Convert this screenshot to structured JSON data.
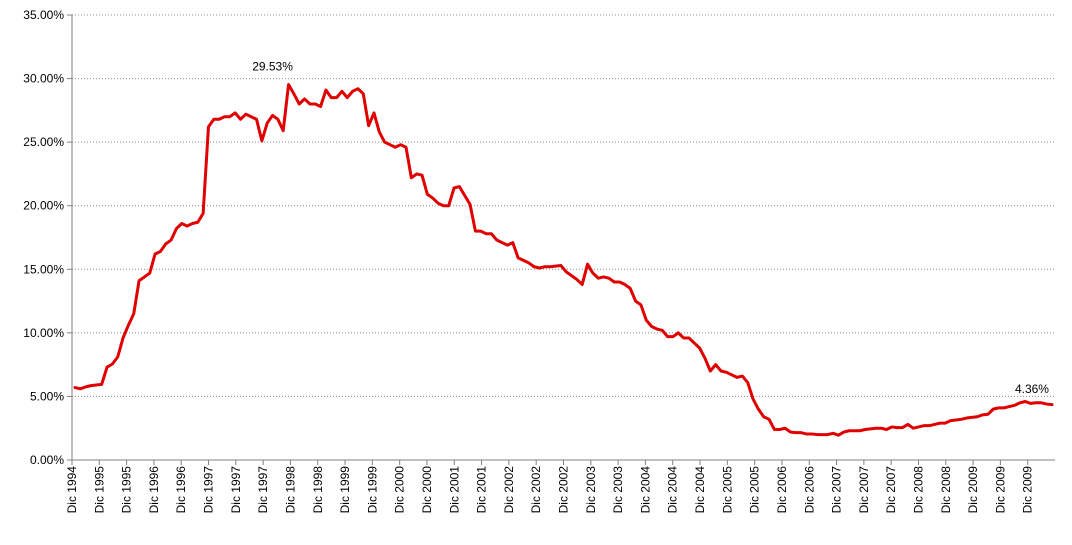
{
  "chart_data": {
    "type": "line",
    "title": "",
    "xlabel": "",
    "ylabel": "",
    "ylim": [
      0,
      35
    ],
    "y_ticks": [
      0,
      5,
      10,
      15,
      20,
      25,
      30,
      35
    ],
    "y_tick_labels": [
      "0.00%",
      "5.00%",
      "10.00%",
      "15.00%",
      "20.00%",
      "25.00%",
      "30.00%",
      "35.00%"
    ],
    "y_grid": "dotted",
    "x_tick_labels": [
      "Dic 1994",
      "Dic 1995",
      "Dic 1995",
      "Dic 1996",
      "Dic 1996",
      "Dic 1997",
      "Dic 1997",
      "Dic 1997",
      "Dic 1998",
      "Dic 1998",
      "Dic 1999",
      "Dic 1999",
      "Dic 2000",
      "Dic 2000",
      "Dic 2001",
      "Dic 2001",
      "Dic 2002",
      "Dic 2002",
      "Dic 2002",
      "Dic 2003",
      "Dic 2003",
      "Dic 2004",
      "Dic 2004",
      "Dic 2004",
      "Dic 2005",
      "Dic 2005",
      "Dic 2006",
      "Dic 2006",
      "Dic 2007",
      "Dic 2007",
      "Dic 2007",
      "Dic 2008",
      "Dic 2008",
      "Dic 2009",
      "Dic 2009",
      "Dic 2009"
    ],
    "series": [
      {
        "color": "#e00000",
        "values": [
          5.7,
          5.6,
          5.75,
          5.85,
          5.9,
          5.95,
          7.3,
          7.55,
          8.1,
          9.6,
          10.6,
          11.5,
          14.1,
          14.4,
          14.7,
          16.2,
          16.4,
          17.0,
          17.3,
          18.2,
          18.6,
          18.4,
          18.6,
          18.7,
          19.4,
          26.2,
          26.8,
          26.8,
          27.0,
          27.0,
          27.3,
          26.8,
          27.2,
          27.0,
          26.8,
          25.1,
          26.5,
          27.1,
          26.8,
          25.9,
          29.53,
          28.8,
          28.0,
          28.4,
          28.0,
          28.0,
          27.8,
          29.1,
          28.5,
          28.5,
          29.0,
          28.5,
          29.0,
          29.2,
          28.8,
          26.3,
          27.3,
          25.8,
          25.0,
          24.8,
          24.6,
          24.8,
          24.6,
          22.2,
          22.5,
          22.4,
          20.9,
          20.6,
          20.2,
          20.0,
          20.0,
          21.4,
          21.5,
          20.8,
          20.1,
          18.0,
          18.0,
          17.8,
          17.8,
          17.3,
          17.1,
          16.9,
          17.1,
          15.9,
          15.7,
          15.5,
          15.2,
          15.1,
          15.2,
          15.2,
          15.25,
          15.3,
          14.8,
          14.5,
          14.2,
          13.8,
          15.4,
          14.7,
          14.3,
          14.4,
          14.3,
          14.0,
          14.0,
          13.8,
          13.5,
          12.5,
          12.2,
          11.0,
          10.5,
          10.3,
          10.2,
          9.7,
          9.7,
          10.0,
          9.6,
          9.6,
          9.2,
          8.8,
          8.0,
          7.0,
          7.5,
          7.0,
          6.9,
          6.7,
          6.5,
          6.6,
          6.1,
          4.8,
          4.0,
          3.4,
          3.2,
          2.4,
          2.4,
          2.5,
          2.2,
          2.15,
          2.15,
          2.05,
          2.05,
          2.0,
          2.0,
          2.0,
          2.1,
          1.95,
          2.2,
          2.3,
          2.3,
          2.3,
          2.4,
          2.45,
          2.5,
          2.5,
          2.4,
          2.6,
          2.55,
          2.55,
          2.8,
          2.5,
          2.6,
          2.7,
          2.7,
          2.8,
          2.9,
          2.9,
          3.1,
          3.15,
          3.2,
          3.3,
          3.35,
          3.4,
          3.55,
          3.6,
          4.0,
          4.1,
          4.1,
          4.2,
          4.3,
          4.5,
          4.6,
          4.45,
          4.5,
          4.5,
          4.4,
          4.36
        ]
      }
    ],
    "annotations": [
      {
        "text": "29.53%",
        "series_index": 40
      },
      {
        "text": "4.36%",
        "series_index": 180
      }
    ]
  }
}
